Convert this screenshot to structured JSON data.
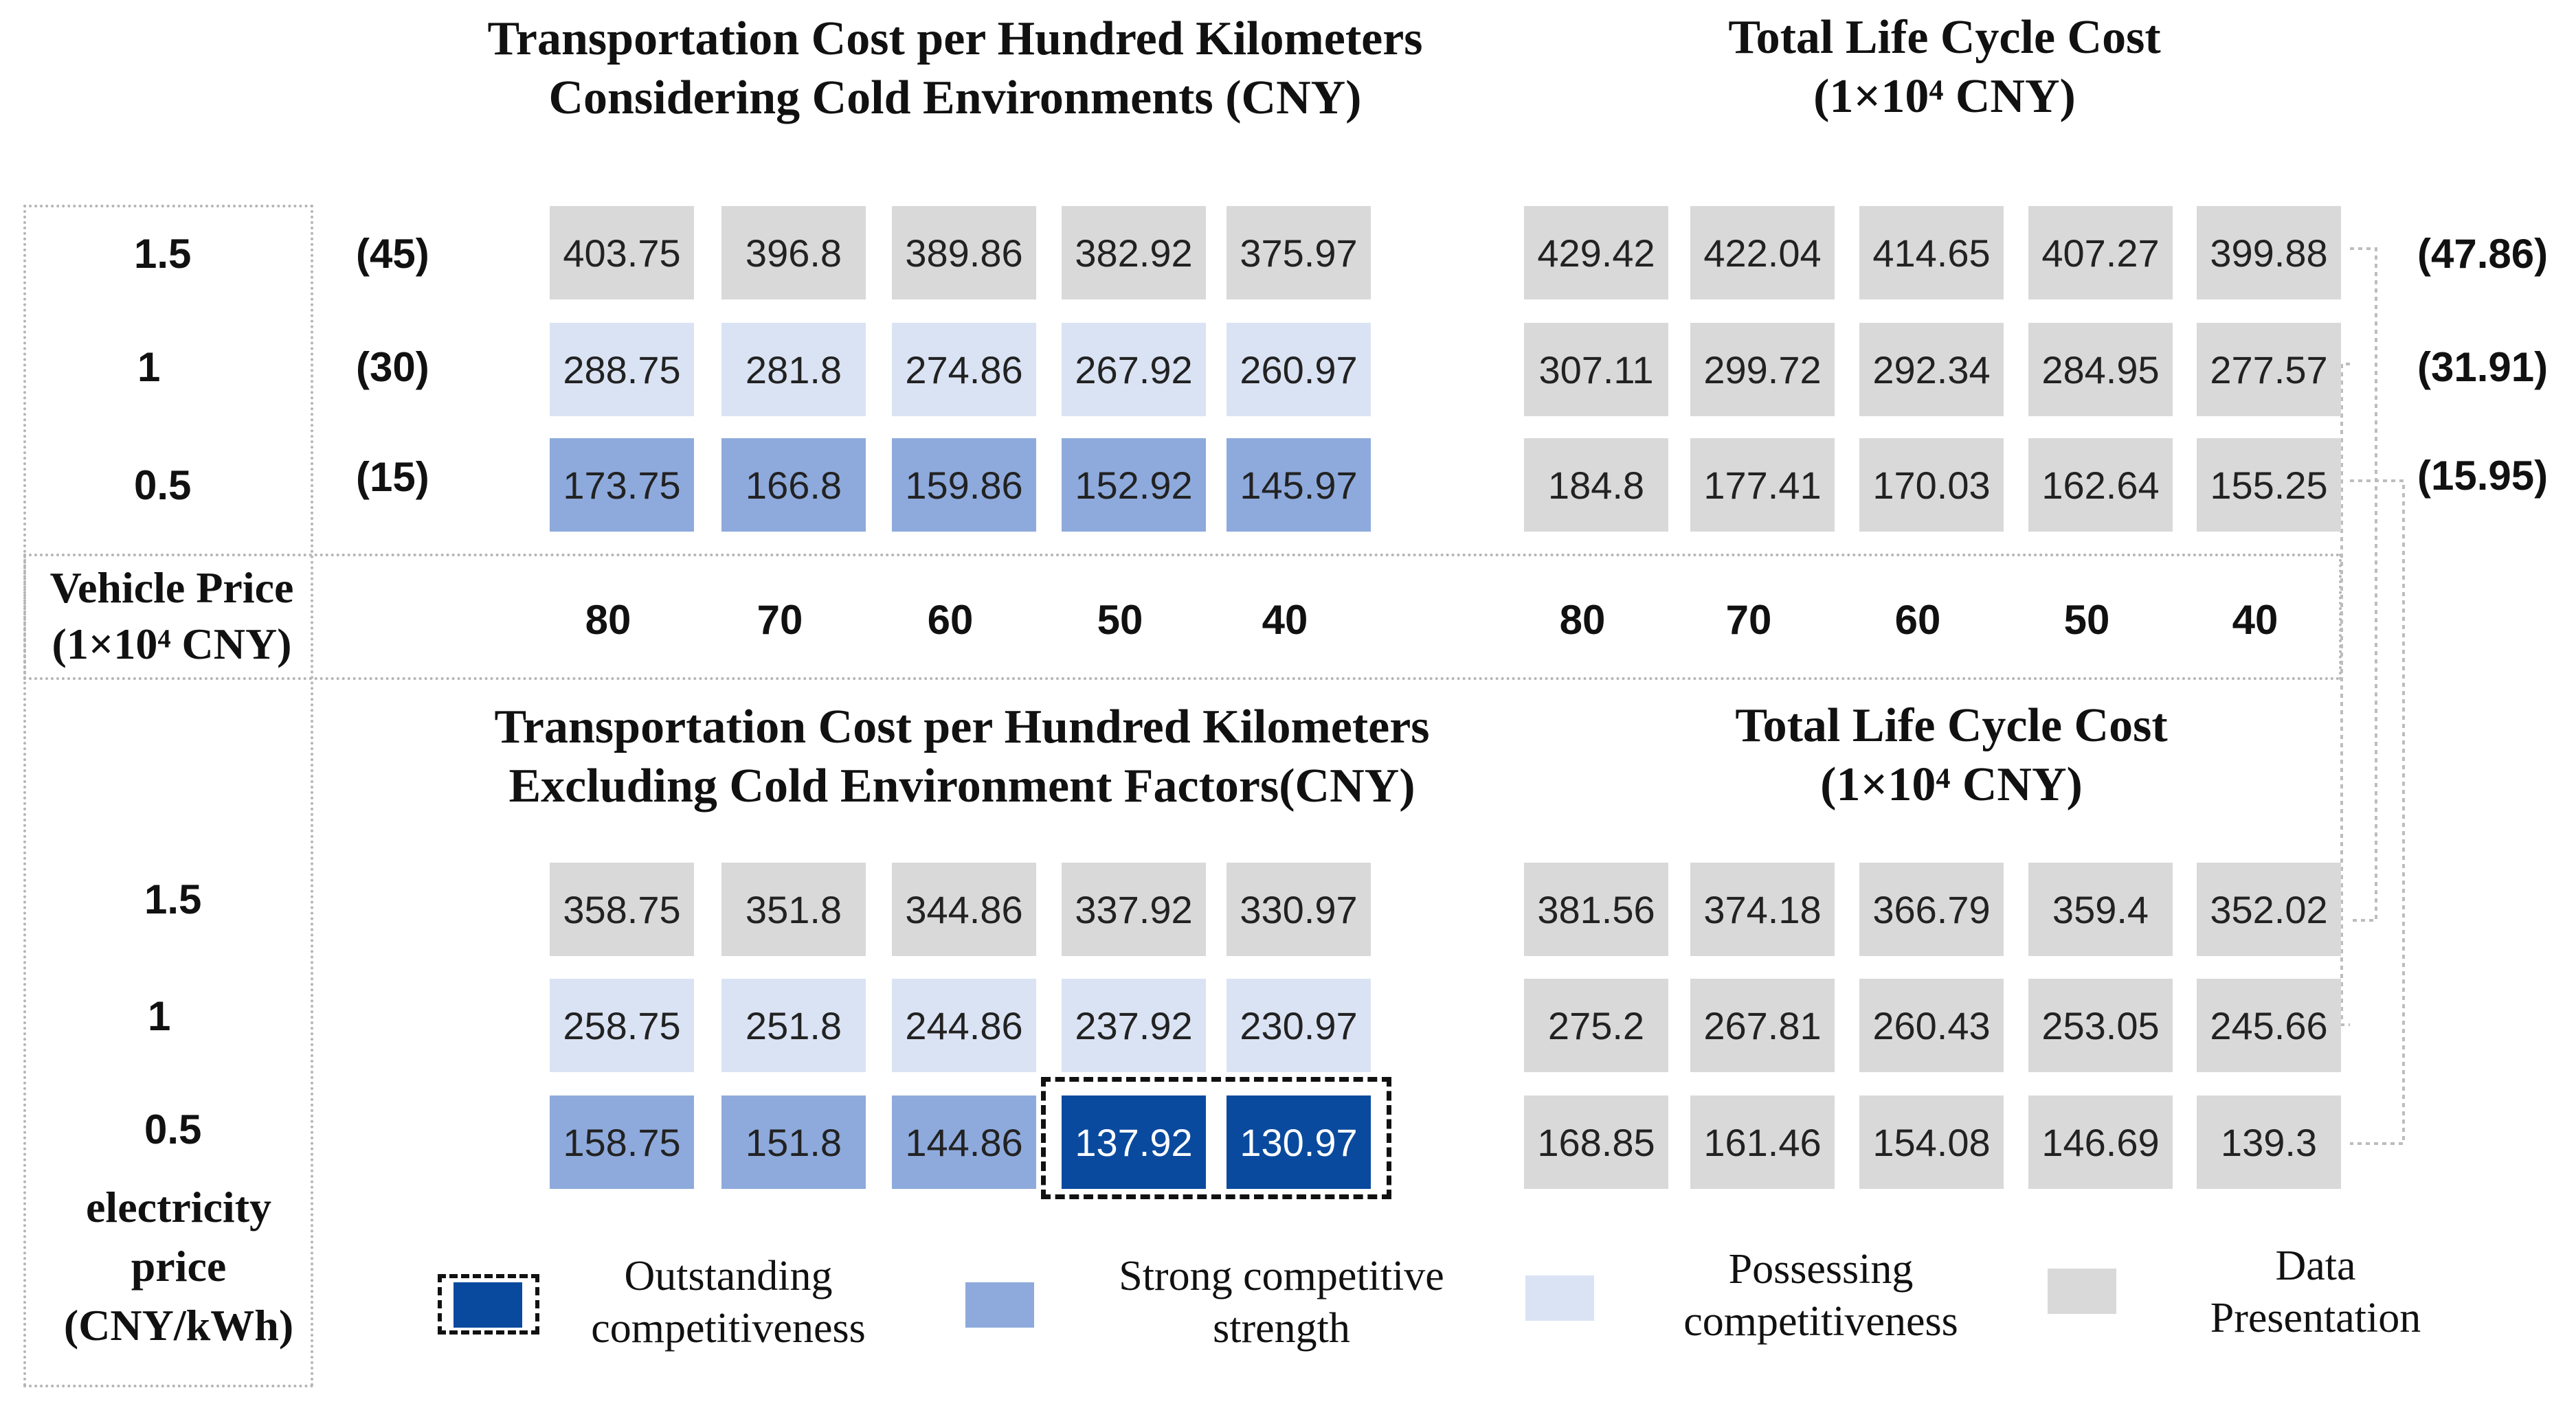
{
  "chart_data": {
    "type": "heatmap",
    "x_label": "Vehicle Price\n(1×10⁴ CNY)",
    "y_label": "electricity\nprice\n(CNY/kWh)",
    "vehicle_prices": [
      "80",
      "70",
      "60",
      "50",
      "40"
    ],
    "electricity_prices": [
      "1.5",
      "1",
      "0.5"
    ],
    "energy_cost_labels": [
      "(45)",
      "(30)",
      "(15)"
    ],
    "lifecycle_energy_labels": [
      "(47.86)",
      "(31.91)",
      "(15.95)"
    ],
    "panels": [
      {
        "id": "cold_transport",
        "title_line1": "Transportation Cost per Hundred Kilometers",
        "title_line2": "Considering Cold Environments  (CNY)",
        "values": [
          [
            "403.75",
            "396.8",
            "389.86",
            "382.92",
            "375.97"
          ],
          [
            "288.75",
            "281.8",
            "274.86",
            "267.92",
            "260.97"
          ],
          [
            "173.75",
            "166.8",
            "159.86",
            "152.92",
            "145.97"
          ]
        ],
        "levels": [
          [
            "data",
            "data",
            "data",
            "data",
            "data"
          ],
          [
            "possessing",
            "possessing",
            "possessing",
            "possessing",
            "possessing"
          ],
          [
            "strong",
            "strong",
            "strong",
            "strong",
            "strong"
          ]
        ]
      },
      {
        "id": "cold_lifecycle",
        "title_line1": "Total Life Cycle Cost",
        "title_line2": "(1×10⁴ CNY)",
        "values": [
          [
            "429.42",
            "422.04",
            "414.65",
            "407.27",
            "399.88"
          ],
          [
            "307.11",
            "299.72",
            "292.34",
            "284.95",
            "277.57"
          ],
          [
            "184.8",
            "177.41",
            "170.03",
            "162.64",
            "155.25"
          ]
        ],
        "levels": [
          [
            "data",
            "data",
            "data",
            "data",
            "data"
          ],
          [
            "data",
            "data",
            "data",
            "data",
            "data"
          ],
          [
            "data",
            "data",
            "data",
            "data",
            "data"
          ]
        ]
      },
      {
        "id": "nocold_transport",
        "title_line1": "Transportation Cost per Hundred Kilometers",
        "title_line2": "Excluding Cold Environment Factors(CNY)",
        "values": [
          [
            "358.75",
            "351.8",
            "344.86",
            "337.92",
            "330.97"
          ],
          [
            "258.75",
            "251.8",
            "244.86",
            "237.92",
            "230.97"
          ],
          [
            "158.75",
            "151.8",
            "144.86",
            "137.92",
            "130.97"
          ]
        ],
        "levels": [
          [
            "data",
            "data",
            "data",
            "data",
            "data"
          ],
          [
            "possessing",
            "possessing",
            "possessing",
            "possessing",
            "possessing"
          ],
          [
            "strong",
            "strong",
            "strong",
            "outstanding",
            "outstanding"
          ]
        ]
      },
      {
        "id": "nocold_lifecycle",
        "title_line1": "Total Life Cycle Cost",
        "title_line2": "(1×10⁴ CNY)",
        "values": [
          [
            "381.56",
            "374.18",
            "366.79",
            "359.4",
            "352.02"
          ],
          [
            "275.2",
            "267.81",
            "260.43",
            "253.05",
            "245.66"
          ],
          [
            "168.85",
            "161.46",
            "154.08",
            "146.69",
            "139.3"
          ]
        ],
        "levels": [
          [
            "data",
            "data",
            "data",
            "data",
            "data"
          ],
          [
            "data",
            "data",
            "data",
            "data",
            "data"
          ],
          [
            "data",
            "data",
            "data",
            "data",
            "data"
          ]
        ]
      }
    ],
    "legend": [
      {
        "key": "outstanding",
        "line1": "Outstanding",
        "line2": "competitiveness"
      },
      {
        "key": "strong",
        "line1": "Strong competitive",
        "line2": "strength"
      },
      {
        "key": "possessing",
        "line1": "Possessing",
        "line2": "competitiveness"
      },
      {
        "key": "data",
        "line1": "Data",
        "line2": "Presentation"
      }
    ],
    "colors": {
      "outstanding": "#0a4a9e",
      "strong": "#8eaadc",
      "possessing": "#dae3f3",
      "data": "#d9d9d9"
    }
  }
}
